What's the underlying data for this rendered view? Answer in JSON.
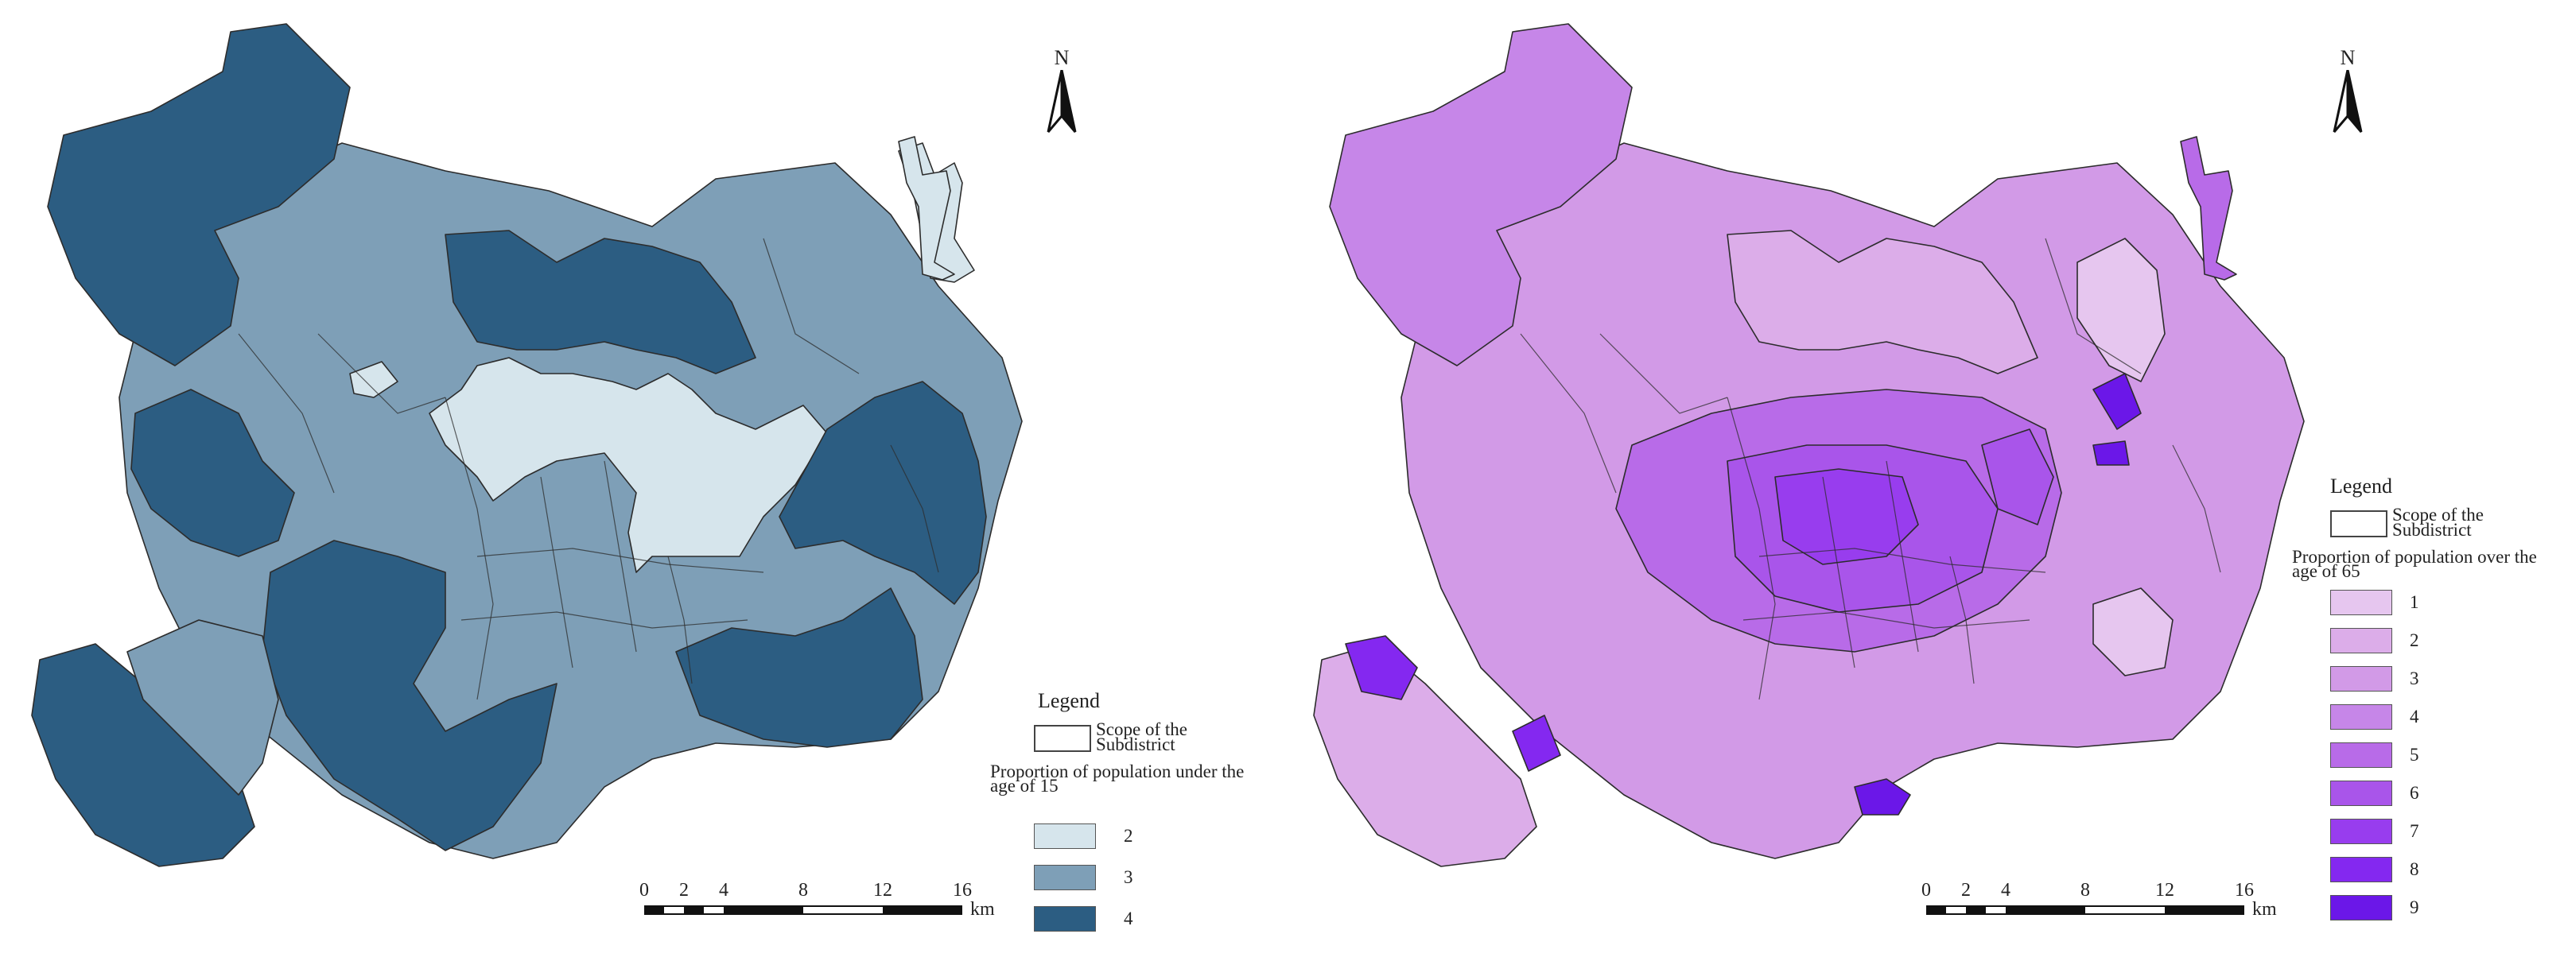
{
  "maps": [
    {
      "id": "under15",
      "north_label": "N",
      "legend": {
        "title": "Legend",
        "scope_label": "Scope of the Subdistrict",
        "proportion_label": "Proportion of population under the age of 15",
        "classes": [
          {
            "label": "2",
            "color": "#d6e5ec"
          },
          {
            "label": "3",
            "color": "#7e9fb7"
          },
          {
            "label": "4",
            "color": "#2c5d82"
          }
        ]
      },
      "scale": {
        "ticks": [
          "0",
          "2",
          "4",
          "8",
          "12",
          "16"
        ],
        "unit": "km"
      }
    },
    {
      "id": "over65",
      "north_label": "N",
      "legend": {
        "title": "Legend",
        "scope_label": "Scope of the Subdistrict",
        "proportion_label": "Proportion of population over the age of 65",
        "classes": [
          {
            "label": "1",
            "color": "#e6c6ef"
          },
          {
            "label": "2",
            "color": "#dcade9"
          },
          {
            "label": "3",
            "color": "#d29ae7"
          },
          {
            "label": "4",
            "color": "#c686e8"
          },
          {
            "label": "5",
            "color": "#b86be8"
          },
          {
            "label": "6",
            "color": "#a955ea"
          },
          {
            "label": "7",
            "color": "#983dee"
          },
          {
            "label": "8",
            "color": "#8428f0"
          },
          {
            "label": "9",
            "color": "#6b17e8"
          }
        ]
      },
      "scale": {
        "ticks": [
          "0",
          "2",
          "4",
          "8",
          "12",
          "16"
        ],
        "unit": "km"
      }
    }
  ]
}
